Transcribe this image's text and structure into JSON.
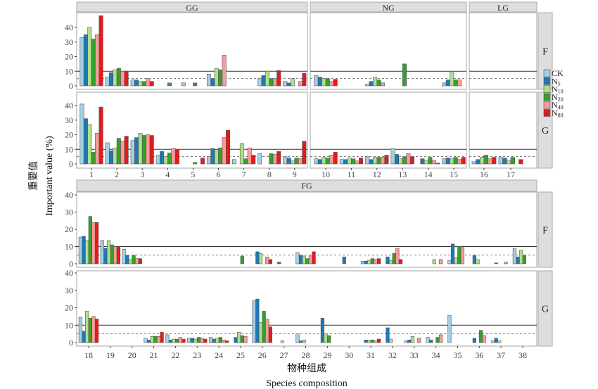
{
  "chart_data": {
    "type": "bar",
    "ylabel_cn": "重要值",
    "ylabel": "Important value (%)",
    "xlabel_cn": "物种组成",
    "xlabel": "Species composition",
    "ylim": [
      0,
      40
    ],
    "yticks": [
      0,
      10,
      20,
      30,
      40
    ],
    "reference_lines": {
      "solid": 10,
      "dashed": 5
    },
    "column_facets": [
      {
        "label": "GG",
        "species": [
          1,
          2,
          3,
          4,
          5,
          6,
          7,
          8,
          9
        ]
      },
      {
        "label": "NG",
        "species": [
          10,
          11,
          12,
          13,
          14,
          15
        ]
      },
      {
        "label": "LG",
        "species": [
          16,
          17
        ]
      },
      {
        "label": "FG",
        "species": [
          18,
          19,
          20,
          21,
          22,
          23,
          24,
          25,
          26,
          27,
          28,
          29,
          30,
          31,
          32,
          33,
          34,
          35,
          36,
          37,
          38
        ]
      }
    ],
    "row_facets": [
      "F",
      "G"
    ],
    "series": [
      {
        "name": "CK",
        "label_base": "CK",
        "label_sub": "",
        "color": "#a6cee3"
      },
      {
        "name": "N5",
        "label_base": "N",
        "label_sub": "5",
        "color": "#1f78b4"
      },
      {
        "name": "N10",
        "label_base": "N",
        "label_sub": "10",
        "color": "#b2df8a"
      },
      {
        "name": "N20",
        "label_base": "N",
        "label_sub": "20",
        "color": "#33a02c"
      },
      {
        "name": "N40",
        "label_base": "N",
        "label_sub": "40",
        "color": "#fb9a99"
      },
      {
        "name": "N80",
        "label_base": "N",
        "label_sub": "80",
        "color": "#e31a1c"
      }
    ],
    "values": {
      "F": {
        "1": [
          33,
          35,
          40,
          32,
          35,
          48
        ],
        "2": [
          6,
          9,
          11,
          12,
          10,
          10
        ],
        "3": [
          4,
          4,
          3,
          3,
          5,
          3
        ],
        "4": [
          null,
          null,
          null,
          2,
          null,
          null
        ],
        "5": [
          2,
          null,
          null,
          2,
          null,
          null
        ],
        "6": [
          8,
          5,
          12,
          11,
          21,
          null
        ],
        "7": [
          null,
          null,
          null,
          null,
          null,
          null
        ],
        "8": [
          5,
          7,
          10,
          5,
          5,
          10.5
        ],
        "9": [
          3,
          2,
          5,
          null,
          3,
          8.5
        ],
        "10": [
          7,
          6,
          5,
          5,
          3,
          4.5
        ],
        "11": [
          null,
          null,
          null,
          null,
          null,
          null
        ],
        "12": [
          1,
          3,
          6,
          4,
          2,
          null
        ],
        "13": [
          null,
          null,
          null,
          15,
          null,
          null
        ],
        "14": [
          null,
          null,
          null,
          null,
          null,
          null
        ],
        "15": [
          2,
          4,
          9,
          4,
          4,
          null
        ],
        "16": [
          null,
          null,
          null,
          null,
          null,
          null
        ],
        "17": [
          null,
          null,
          null,
          null,
          null,
          null
        ],
        "18": [
          15.5,
          16,
          13.5,
          27.5,
          24,
          24
        ],
        "19": [
          13.5,
          9,
          13.5,
          11,
          10,
          10
        ],
        "20": [
          8.5,
          5,
          2.5,
          5,
          3,
          3
        ],
        "21": [
          null,
          null,
          null,
          null,
          null,
          null
        ],
        "22": [
          null,
          null,
          null,
          null,
          null,
          null
        ],
        "23": [
          null,
          null,
          null,
          null,
          null,
          null
        ],
        "24": [
          null,
          null,
          null,
          null,
          null,
          null
        ],
        "25": [
          null,
          null,
          null,
          4.5,
          null,
          null
        ],
        "26": [
          null,
          7,
          6,
          null,
          4,
          2.5
        ],
        "27": [
          null,
          1,
          null,
          null,
          null,
          null
        ],
        "28": [
          6.5,
          5,
          4.5,
          3,
          5,
          7
        ],
        "29": [
          null,
          null,
          null,
          null,
          null,
          null
        ],
        "30": [
          null,
          4,
          null,
          null,
          null,
          null
        ],
        "31": [
          1.5,
          1.5,
          2,
          3,
          2.5,
          3
        ],
        "32": [
          null,
          4,
          2,
          6,
          9,
          2.5
        ],
        "33": [
          null,
          null,
          null,
          null,
          null,
          null
        ],
        "34": [
          null,
          null,
          2.5,
          null,
          2.5,
          null
        ],
        "35": [
          2,
          11.5,
          3.5,
          10,
          9.5,
          null
        ],
        "36": [
          null,
          5,
          2.5,
          null,
          null,
          null
        ],
        "37": [
          null,
          0.5,
          null,
          null,
          1,
          null
        ],
        "38": [
          9,
          4,
          8,
          5,
          null,
          null
        ]
      },
      "G": {
        "1": [
          41,
          31,
          27,
          8,
          21,
          39
        ],
        "2": [
          14.5,
          9,
          11,
          17.5,
          15.5,
          19
        ],
        "3": [
          16,
          18,
          21,
          19.5,
          20,
          19.5
        ],
        "4": [
          6,
          8.5,
          5,
          7.5,
          10.5,
          10
        ],
        "5": [
          null,
          null,
          null,
          1,
          null,
          4
        ],
        "6": [
          5,
          10.5,
          9,
          11,
          18,
          23
        ],
        "7": [
          3,
          null,
          14,
          3.5,
          11,
          6
        ],
        "8": [
          7,
          null,
          null,
          7,
          6.5,
          8.5
        ],
        "9": [
          5,
          4,
          2,
          4,
          3.5,
          15.5
        ],
        "10": [
          3.5,
          3,
          4.5,
          4,
          6,
          8
        ],
        "11": [
          3,
          3,
          4,
          3.5,
          2,
          4
        ],
        "12": [
          5,
          3,
          4.5,
          4.5,
          4.5,
          6
        ],
        "13": [
          10.5,
          6.5,
          3.5,
          5,
          7,
          5
        ],
        "14": [
          null,
          3.5,
          2.5,
          4.5,
          2.5,
          0.5
        ],
        "15": [
          3.5,
          4,
          3.5,
          4.5,
          3,
          4.5
        ],
        "16": [
          1.5,
          3,
          4.5,
          6,
          3.5,
          4.5
        ],
        "17": [
          4.5,
          4,
          2.5,
          4.5,
          null,
          3
        ],
        "18": [
          14.5,
          6.5,
          18,
          14,
          15,
          13.5
        ],
        "19": [
          null,
          null,
          null,
          null,
          null,
          null
        ],
        "20": [
          null,
          null,
          null,
          null,
          null,
          null
        ],
        "21": [
          2.5,
          1.5,
          3.5,
          3.5,
          3.5,
          6
        ],
        "22": [
          4.5,
          1.5,
          2,
          2,
          3,
          2
        ],
        "23": [
          2.5,
          2.5,
          2,
          3,
          2.5,
          2
        ],
        "24": [
          3,
          2,
          2.5,
          3,
          1.5,
          1
        ],
        "25": [
          null,
          3,
          6,
          4,
          3.5,
          null
        ],
        "26": [
          24,
          25,
          11.5,
          18,
          13.5,
          9
        ],
        "27": [
          null,
          null,
          1,
          null,
          null,
          null
        ],
        "28": [
          5,
          1,
          1.5,
          null,
          null,
          null
        ],
        "29": [
          null,
          14,
          5,
          4,
          null,
          null
        ],
        "30": [
          null,
          null,
          null,
          null,
          null,
          null
        ],
        "31": [
          null,
          1.5,
          1.5,
          1.5,
          1,
          2
        ],
        "32": [
          null,
          8.5,
          2,
          null,
          null,
          null
        ],
        "33": [
          1,
          1.5,
          3.5,
          null,
          2.5,
          null
        ],
        "34": [
          3,
          1.5,
          null,
          3,
          4.5,
          null
        ],
        "35": [
          15.5,
          null,
          null,
          null,
          null,
          null
        ],
        "36": [
          null,
          2.5,
          null,
          7,
          4,
          null
        ],
        "37": [
          1,
          2.5,
          1,
          null,
          null,
          null
        ],
        "38": [
          null,
          null,
          null,
          null,
          null,
          null
        ]
      }
    }
  }
}
